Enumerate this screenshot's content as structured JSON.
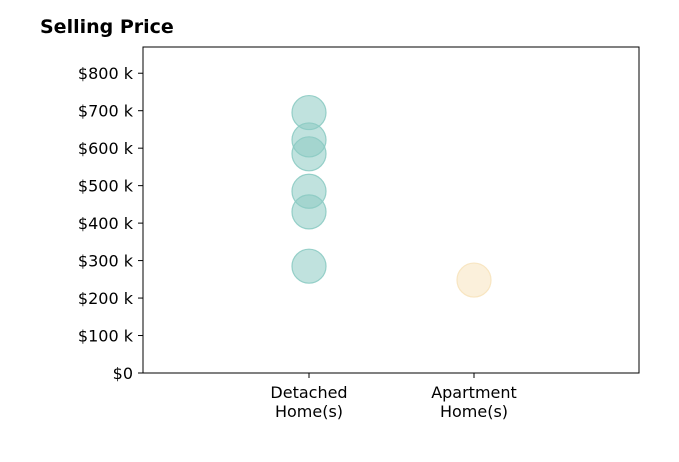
{
  "chart_data": {
    "type": "scatter",
    "title": "Selling Price",
    "xlabel": "",
    "ylabel": "",
    "categories": [
      {
        "lines": [
          "Detached",
          "Home(s)"
        ]
      },
      {
        "lines": [
          "Apartment",
          "Home(s)"
        ]
      }
    ],
    "ylim": [
      0,
      870000
    ],
    "yticks": [
      {
        "value": 0,
        "label": "$0"
      },
      {
        "value": 100000,
        "label": "$100 k"
      },
      {
        "value": 200000,
        "label": "$200 k"
      },
      {
        "value": 300000,
        "label": "$300 k"
      },
      {
        "value": 400000,
        "label": "$400 k"
      },
      {
        "value": 500000,
        "label": "$500 k"
      },
      {
        "value": 600000,
        "label": "$600 k"
      },
      {
        "value": 700000,
        "label": "$700 k"
      },
      {
        "value": 800000,
        "label": "$800 k"
      }
    ],
    "grid": false,
    "series": [
      {
        "color": "#8ccbc3",
        "category_index": 0,
        "values": [
          285000,
          430000,
          485000,
          585000,
          622000,
          695000
        ]
      },
      {
        "color": "#f7e3bd",
        "category_index": 1,
        "values": [
          248000
        ]
      }
    ]
  }
}
